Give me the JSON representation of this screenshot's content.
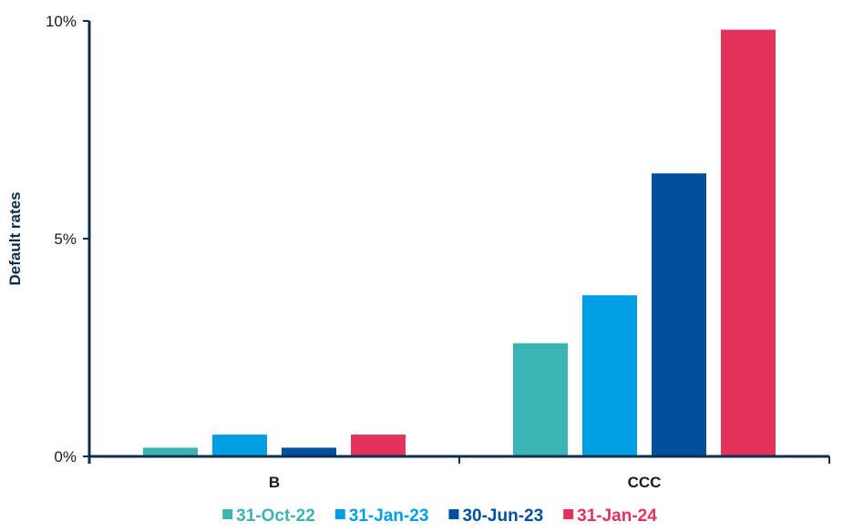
{
  "chart_data": {
    "type": "bar",
    "categories": [
      "B",
      "CCC"
    ],
    "series": [
      {
        "name": "31-Oct-22",
        "color": "#3cb4b4",
        "values": [
          0.2,
          2.6
        ]
      },
      {
        "name": "31-Jan-23",
        "color": "#009fe3",
        "values": [
          0.5,
          3.7
        ]
      },
      {
        "name": "30-Jun-23",
        "color": "#00509e",
        "values": [
          0.2,
          6.5
        ]
      },
      {
        "name": "31-Jan-24",
        "color": "#e5325c",
        "values": [
          0.5,
          9.8
        ]
      }
    ],
    "ylabel": "Default rates",
    "ylim": [
      0,
      10
    ],
    "yticks": [
      {
        "value": 0,
        "label": "0%"
      },
      {
        "value": 5,
        "label": "5%"
      },
      {
        "value": 10,
        "label": "10%"
      }
    ],
    "legend_position": "bottom",
    "grid": false,
    "axis_color": "#0d2f4f"
  }
}
